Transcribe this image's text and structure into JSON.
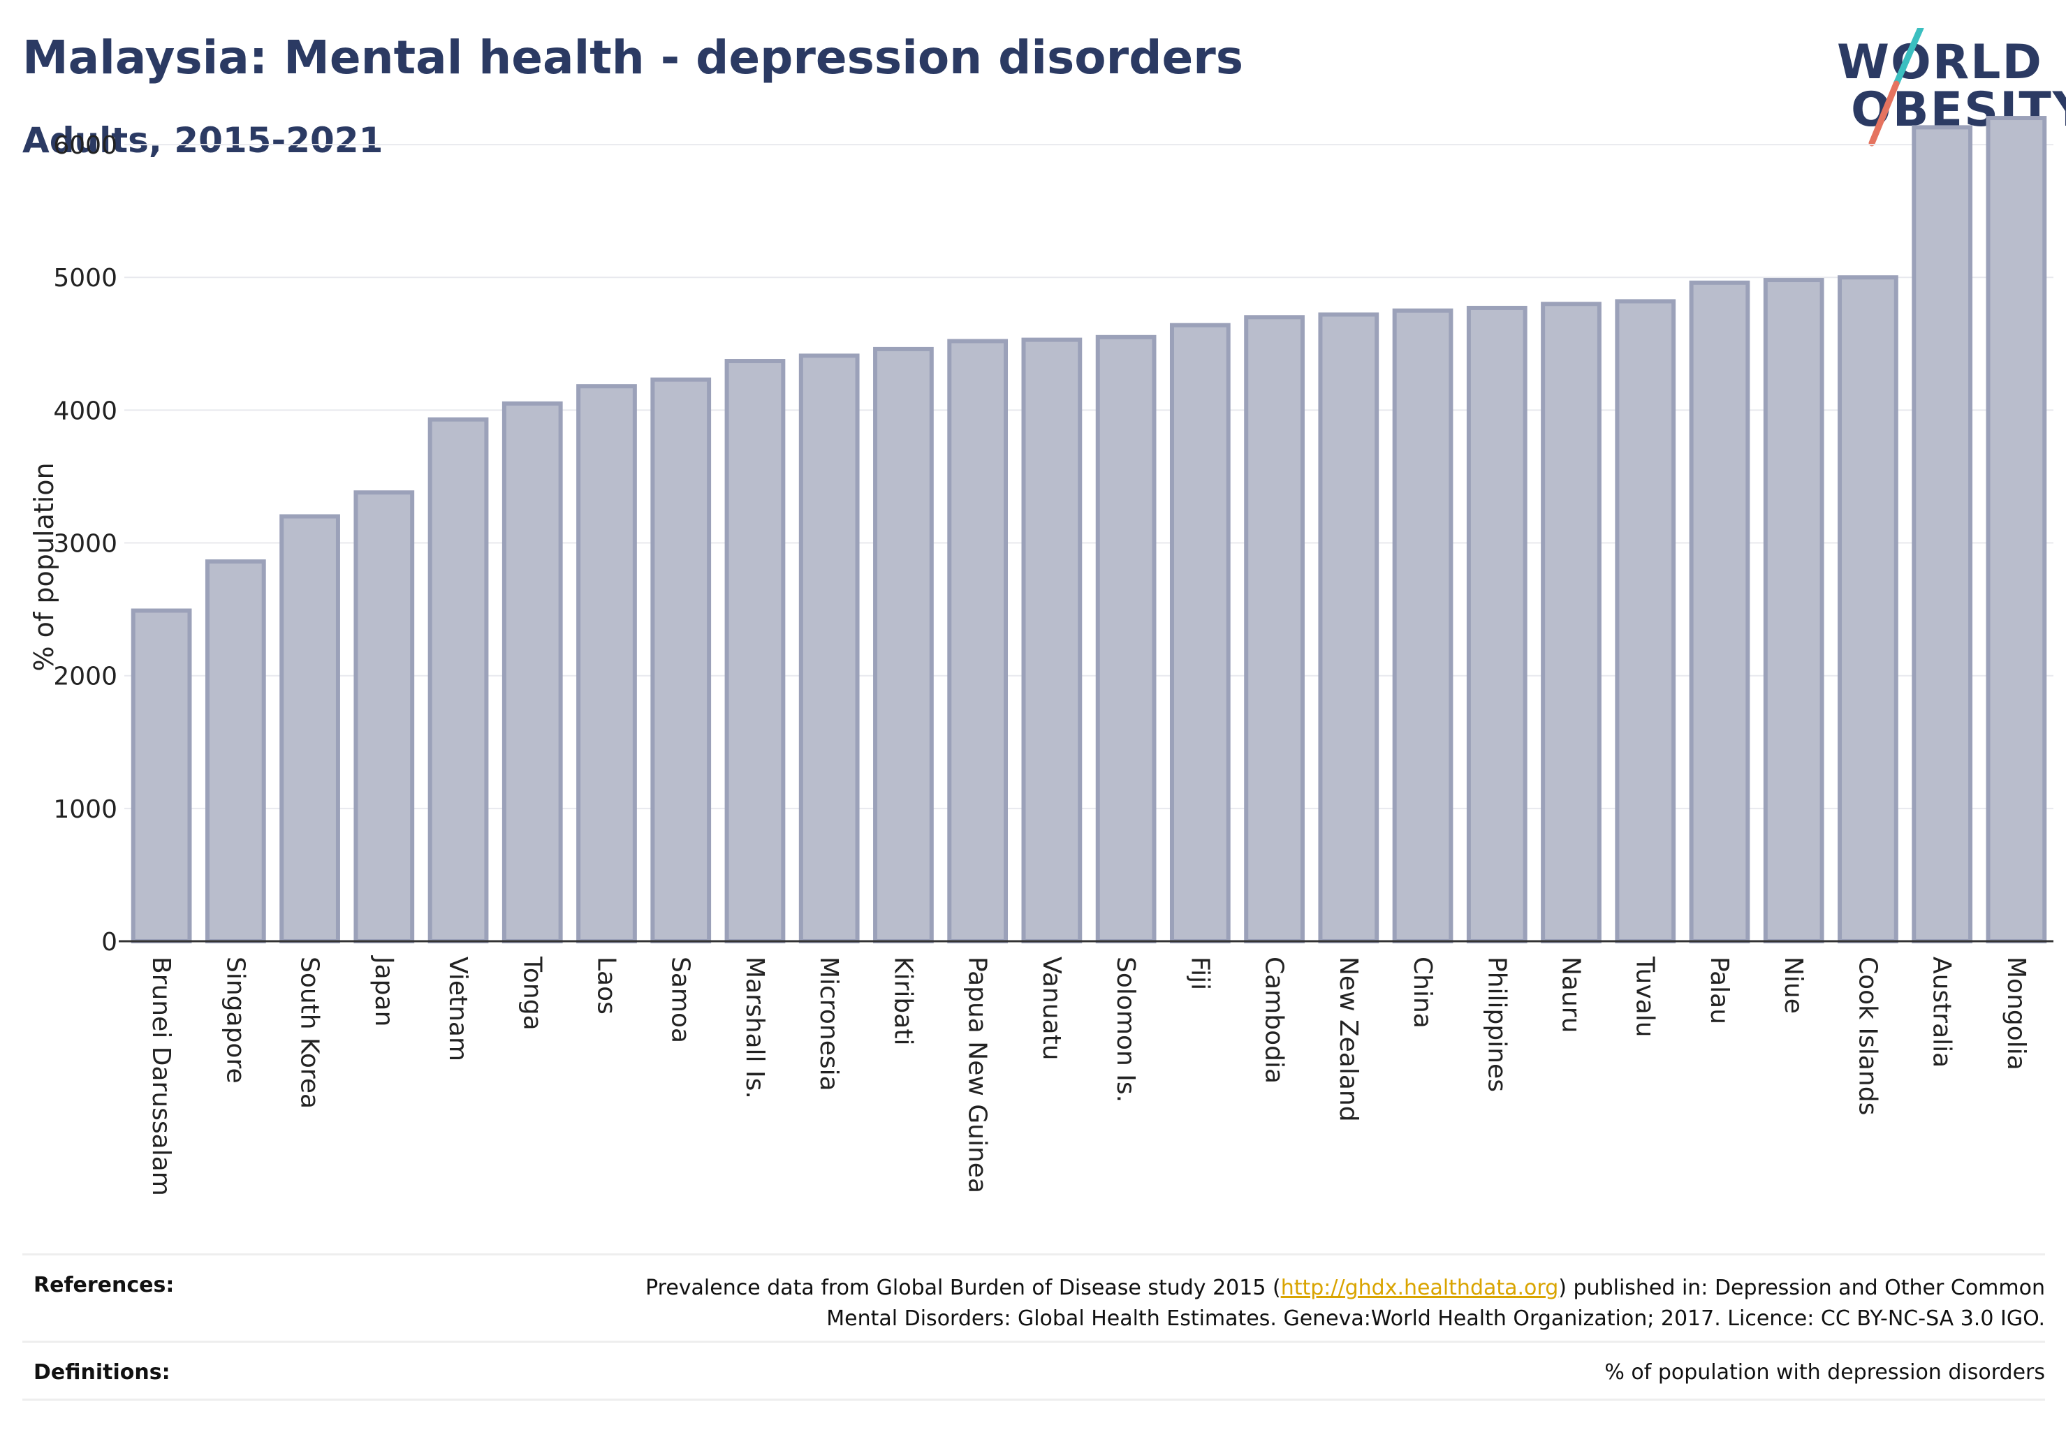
{
  "header": {
    "title": "Malaysia: Mental health - depression disorders",
    "subtitle": "Adults, 2015-2021"
  },
  "logo": {
    "line1": "WORLD",
    "line2": "OBESITY",
    "colors": {
      "text": "#2b3a63",
      "slash_top": "#3bbfc0",
      "slash_bottom": "#e5735f"
    }
  },
  "chart_data": {
    "type": "bar",
    "ylabel": "% of population",
    "ylim": [
      0,
      6500
    ],
    "yticks": [
      0,
      1000,
      2000,
      3000,
      4000,
      5000,
      6000
    ],
    "grid": true,
    "bar_color": "#b9bdcc",
    "bar_edge_color": "#9ba1b9",
    "categories": [
      "Brunei Darussalam",
      "Singapore",
      "South Korea",
      "Japan",
      "Vietnam",
      "Tonga",
      "Laos",
      "Samoa",
      "Marshall Is.",
      "Micronesia",
      "Kiribati",
      "Papua New Guinea",
      "Vanuatu",
      "Solomon Is.",
      "Fiji",
      "Cambodia",
      "New Zealand",
      "China",
      "Philippines",
      "Nauru",
      "Tuvalu",
      "Palau",
      "Niue",
      "Cook Islands",
      "Australia",
      "Mongolia"
    ],
    "values": [
      2490,
      2860,
      3200,
      3380,
      3930,
      4050,
      4180,
      4230,
      4370,
      4410,
      4460,
      4520,
      4530,
      4550,
      4640,
      4700,
      4720,
      4750,
      4770,
      4800,
      4820,
      4960,
      4980,
      5000,
      6130,
      6200
    ]
  },
  "footer": {
    "references_label": "References:",
    "references_pre": "Prevalence data from Global Burden of Disease study 2015 (",
    "references_link": "http://ghdx.healthdata.org",
    "references_post": ") published in: Depression and Other Common",
    "references_line2": "Mental Disorders: Global Health Estimates. Geneva:World Health Organization; 2017. Licence: CC BY-NC-SA 3.0 IGO.",
    "definitions_label": "Definitions:",
    "definitions_text": "% of population with depression disorders"
  }
}
